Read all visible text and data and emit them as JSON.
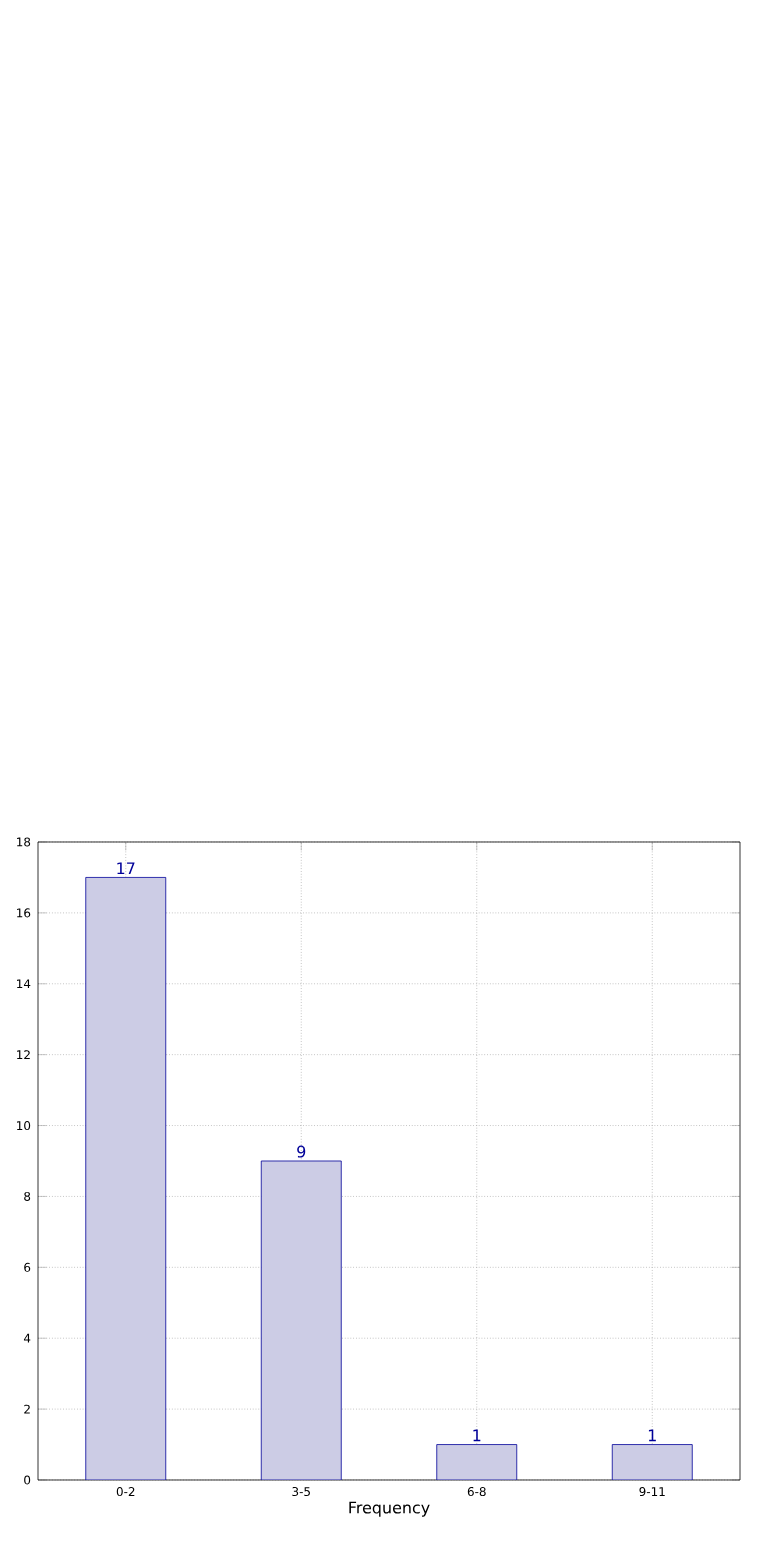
{
  "chart_data": {
    "type": "bar",
    "xlabel": "Frequency",
    "categories": [
      "0-2",
      "3-5",
      "6-8",
      "9-11"
    ],
    "values": [
      17,
      9,
      1,
      1
    ],
    "color": "#ccccE5",
    "ylim": [
      0,
      18
    ],
    "yticks": [
      0,
      2,
      4,
      6,
      8,
      10,
      12,
      14,
      16,
      18
    ],
    "grid": true,
    "data_labels": true
  }
}
